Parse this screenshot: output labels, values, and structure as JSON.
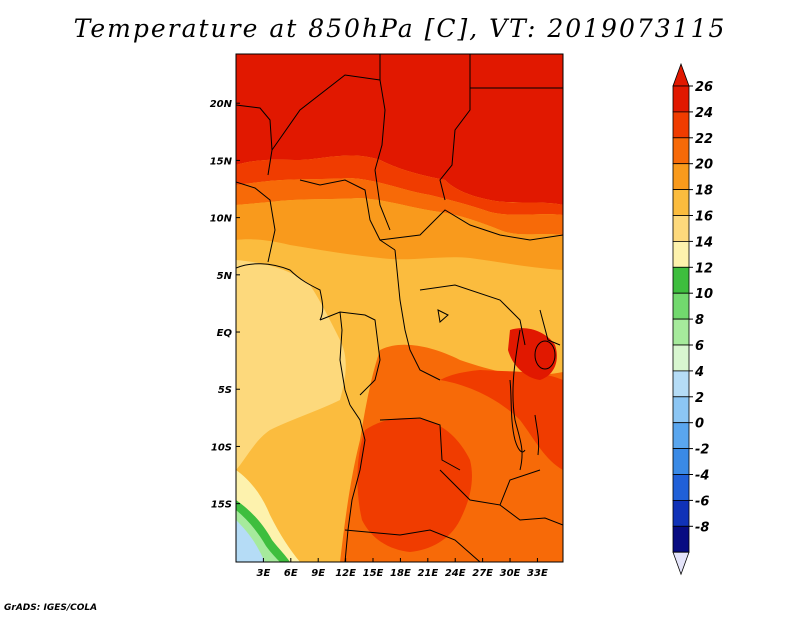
{
  "title": "Temperature at 850hPa [C], VT: 2019073115",
  "credit": "GrADS: IGES/COLA",
  "map": {
    "lon_ticks": [
      {
        "lon": 3,
        "label": "3E"
      },
      {
        "lon": 6,
        "label": "6E"
      },
      {
        "lon": 9,
        "label": "9E"
      },
      {
        "lon": 12,
        "label": "12E"
      },
      {
        "lon": 15,
        "label": "15E"
      },
      {
        "lon": 18,
        "label": "18E"
      },
      {
        "lon": 21,
        "label": "21E"
      },
      {
        "lon": 24,
        "label": "24E"
      },
      {
        "lon": 27,
        "label": "27E"
      },
      {
        "lon": 30,
        "label": "30E"
      },
      {
        "lon": 33,
        "label": "33E"
      }
    ],
    "lat_ticks": [
      {
        "lat": 20,
        "label": "20N"
      },
      {
        "lat": 15,
        "label": "15N"
      },
      {
        "lat": 10,
        "label": "10N"
      },
      {
        "lat": 5,
        "label": "5N"
      },
      {
        "lat": 0,
        "label": "EQ"
      },
      {
        "lat": -5,
        "label": "5S"
      },
      {
        "lat": -10,
        "label": "10S"
      },
      {
        "lat": -15,
        "label": "15S"
      }
    ]
  },
  "colorbar": {
    "levels": [
      {
        "value": "26",
        "color": "#e11800"
      },
      {
        "value": "24",
        "color": "#f03c00"
      },
      {
        "value": "22",
        "color": "#f76a08"
      },
      {
        "value": "20",
        "color": "#f99a1c"
      },
      {
        "value": "18",
        "color": "#fbbc3e"
      },
      {
        "value": "16",
        "color": "#fdd97c"
      },
      {
        "value": "14",
        "color": "#fdf2ad"
      },
      {
        "value": "12",
        "color": "#3ebe3e"
      },
      {
        "value": "10",
        "color": "#72d96e"
      },
      {
        "value": "8",
        "color": "#a6ea9c"
      },
      {
        "value": "6",
        "color": "#d8f6d0"
      },
      {
        "value": "4",
        "color": "#b5dcf6"
      },
      {
        "value": "2",
        "color": "#8cc6f4"
      },
      {
        "value": "0",
        "color": "#5aa6ee"
      },
      {
        "value": "-2",
        "color": "#3a8ae6"
      },
      {
        "value": "-4",
        "color": "#2060d8"
      },
      {
        "value": "-6",
        "color": "#1032b8"
      },
      {
        "value": "-8",
        "color": "#080c82"
      }
    ],
    "bottom_color": "#e4e4fa"
  }
}
